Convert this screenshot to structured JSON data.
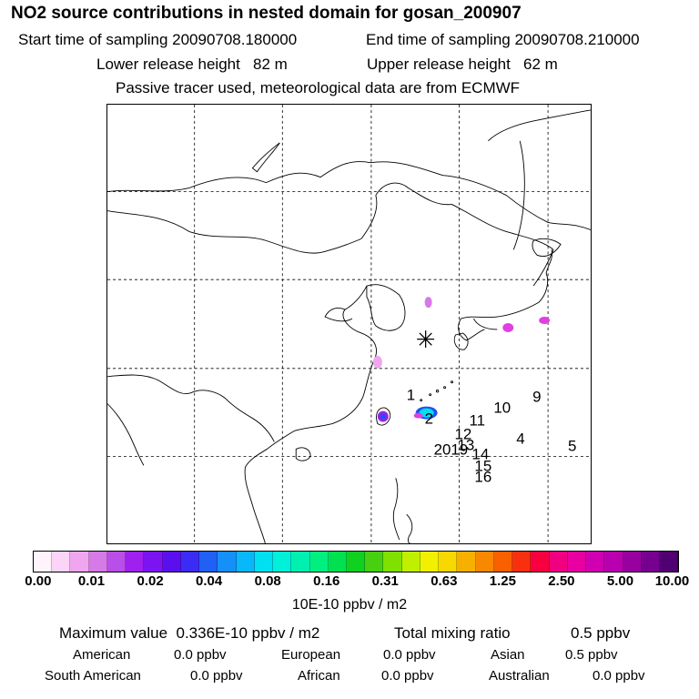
{
  "header": {
    "title": "NO2 source contributions in nested domain for gosan_200907",
    "start_label": "Start time of sampling 20090708.180000",
    "end_label": "End time of sampling 20090708.210000",
    "lower_label": "Lower release height",
    "lower_value": "82 m",
    "upper_label": "Upper release height",
    "upper_value": "62 m",
    "note": "Passive tracer used, meteorological data are from ECMWF"
  },
  "map": {
    "station_symbol": "✳",
    "track_labels": [
      "1",
      "2",
      "4",
      "5",
      "9",
      "10",
      "11",
      "12",
      "13",
      "14",
      "15",
      "16",
      "20"
    ],
    "track_label_20_19": "2019"
  },
  "colorbar": {
    "colors": [
      "#fff3fc",
      "#fbd4f7",
      "#f0a6ef",
      "#d57ae6",
      "#b94ee8",
      "#a020f0",
      "#7b14f0",
      "#5a10ee",
      "#3b2cf5",
      "#2060f5",
      "#1490f8",
      "#08b8f8",
      "#00e0f0",
      "#00f0d8",
      "#00f0b0",
      "#00f080",
      "#00e050",
      "#10d020",
      "#48d010",
      "#80e000",
      "#c0f000",
      "#f0f000",
      "#f8d800",
      "#f8b000",
      "#f88800",
      "#f86000",
      "#f83010",
      "#f80040",
      "#f00080",
      "#e800a0",
      "#d000b0",
      "#b800b0",
      "#9800a0",
      "#780090",
      "#500070"
    ],
    "ticks": [
      "0.00",
      "0.01",
      "0.02",
      "0.04",
      "0.08",
      "0.16",
      "0.31",
      "0.63",
      "1.25",
      "2.50",
      "5.00",
      "10.00"
    ],
    "unit": "10E-10 ppbv / m2"
  },
  "stats": {
    "max_label": "Maximum value",
    "max_value": "0.336E-10 ppbv / m2",
    "total_label": "Total mixing ratio",
    "total_value": "0.5 ppbv",
    "regions": [
      {
        "name": "American",
        "value": "0.0 ppbv"
      },
      {
        "name": "European",
        "value": "0.0 ppbv"
      },
      {
        "name": "Asian",
        "value": "0.5 ppbv"
      },
      {
        "name": "South American",
        "value": "0.0 ppbv"
      },
      {
        "name": "African",
        "value": "0.0 ppbv"
      },
      {
        "name": "Australian",
        "value": "0.0 ppbv"
      }
    ]
  },
  "colors": {
    "coast": "#000000",
    "plume_purple": "#9a20e8",
    "plume_magenta": "#e040e0",
    "plume_cyan": "#00e0f0",
    "plume_blue": "#2050f0"
  }
}
